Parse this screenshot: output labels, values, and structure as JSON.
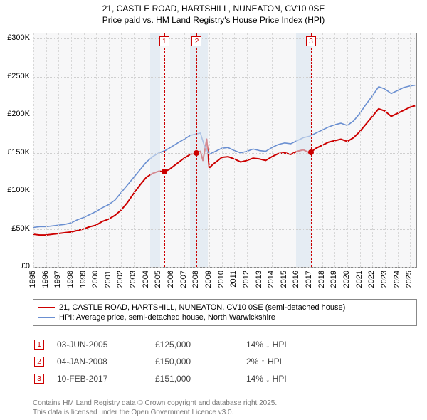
{
  "title_line1": "21, CASTLE ROAD, HARTSHILL, NUNEATON, CV10 0SE",
  "title_line2": "Price paid vs. HM Land Registry's House Price Index (HPI)",
  "chart": {
    "type": "line",
    "x_min": 1995,
    "x_max": 2025.5,
    "xticks": [
      1995,
      1996,
      1997,
      1998,
      1999,
      2000,
      2001,
      2002,
      2003,
      2004,
      2005,
      2006,
      2007,
      2008,
      2009,
      2010,
      2011,
      2012,
      2013,
      2014,
      2015,
      2016,
      2017,
      2018,
      2019,
      2020,
      2021,
      2022,
      2023,
      2024,
      2025
    ],
    "y_min": 0,
    "y_max": 307000,
    "yticks": [
      0,
      50000,
      100000,
      150000,
      200000,
      250000,
      300000
    ],
    "ytick_labels": [
      "£0",
      "£50K",
      "£100K",
      "£150K",
      "£200K",
      "£250K",
      "£300K"
    ],
    "background_color": "#f7f7f8",
    "grid_color": "#cfcfcf",
    "border_color": "#888888",
    "shaded_ranges": [
      {
        "from": 2004.3,
        "to": 2005.1,
        "color": "#d8e4f0"
      },
      {
        "from": 2007.5,
        "to": 2008.9,
        "color": "#d8e4f0"
      },
      {
        "from": 2015.9,
        "to": 2017.2,
        "color": "#d8e4f0"
      }
    ],
    "series": [
      {
        "name": "price_paid",
        "label": "21, CASTLE ROAD, HARTSHILL, NUNEATON, CV10 0SE (semi-detached house)",
        "color": "#cc0000",
        "line_width": 2,
        "points": [
          [
            1995.0,
            43000
          ],
          [
            1995.5,
            42000
          ],
          [
            1996.0,
            42000
          ],
          [
            1996.5,
            43000
          ],
          [
            1997.0,
            44000
          ],
          [
            1997.5,
            45000
          ],
          [
            1998.0,
            46000
          ],
          [
            1998.5,
            48000
          ],
          [
            1999.0,
            50000
          ],
          [
            1999.5,
            53000
          ],
          [
            2000.0,
            55000
          ],
          [
            2000.5,
            60000
          ],
          [
            2001.0,
            63000
          ],
          [
            2001.5,
            68000
          ],
          [
            2002.0,
            75000
          ],
          [
            2002.5,
            85000
          ],
          [
            2003.0,
            97000
          ],
          [
            2003.5,
            108000
          ],
          [
            2004.0,
            118000
          ],
          [
            2004.5,
            123000
          ],
          [
            2005.0,
            126000
          ],
          [
            2005.4,
            125000
          ],
          [
            2005.8,
            128000
          ],
          [
            2006.2,
            133000
          ],
          [
            2006.6,
            138000
          ],
          [
            2007.0,
            143000
          ],
          [
            2007.5,
            148000
          ],
          [
            2008.0,
            150000
          ],
          [
            2008.3,
            152000
          ],
          [
            2008.5,
            140000
          ],
          [
            2008.7,
            158000
          ],
          [
            2008.8,
            168000
          ],
          [
            2009.0,
            130000
          ],
          [
            2009.3,
            135000
          ],
          [
            2009.7,
            140000
          ],
          [
            2010.0,
            144000
          ],
          [
            2010.5,
            145000
          ],
          [
            2011.0,
            142000
          ],
          [
            2011.5,
            138000
          ],
          [
            2012.0,
            140000
          ],
          [
            2012.5,
            143000
          ],
          [
            2013.0,
            142000
          ],
          [
            2013.5,
            140000
          ],
          [
            2014.0,
            145000
          ],
          [
            2014.5,
            149000
          ],
          [
            2015.0,
            150000
          ],
          [
            2015.5,
            148000
          ],
          [
            2016.0,
            152000
          ],
          [
            2016.5,
            154000
          ],
          [
            2017.0,
            150000
          ],
          [
            2017.1,
            151000
          ],
          [
            2017.5,
            156000
          ],
          [
            2018.0,
            160000
          ],
          [
            2018.5,
            164000
          ],
          [
            2019.0,
            166000
          ],
          [
            2019.5,
            168000
          ],
          [
            2020.0,
            165000
          ],
          [
            2020.5,
            170000
          ],
          [
            2021.0,
            178000
          ],
          [
            2021.5,
            188000
          ],
          [
            2022.0,
            198000
          ],
          [
            2022.5,
            208000
          ],
          [
            2023.0,
            205000
          ],
          [
            2023.5,
            198000
          ],
          [
            2024.0,
            202000
          ],
          [
            2024.5,
            206000
          ],
          [
            2025.0,
            210000
          ],
          [
            2025.4,
            212000
          ]
        ]
      },
      {
        "name": "hpi",
        "label": "HPI: Average price, semi-detached house, North Warwickshire",
        "color": "#6a8fd1",
        "line_width": 1.6,
        "points": [
          [
            1995.0,
            52000
          ],
          [
            1995.5,
            53000
          ],
          [
            1996.0,
            53000
          ],
          [
            1996.5,
            54000
          ],
          [
            1997.0,
            55000
          ],
          [
            1997.5,
            56000
          ],
          [
            1998.0,
            58000
          ],
          [
            1998.5,
            62000
          ],
          [
            1999.0,
            65000
          ],
          [
            1999.5,
            69000
          ],
          [
            2000.0,
            73000
          ],
          [
            2000.5,
            78000
          ],
          [
            2001.0,
            82000
          ],
          [
            2001.5,
            88000
          ],
          [
            2002.0,
            98000
          ],
          [
            2002.5,
            108000
          ],
          [
            2003.0,
            118000
          ],
          [
            2003.5,
            128000
          ],
          [
            2004.0,
            138000
          ],
          [
            2004.5,
            145000
          ],
          [
            2005.0,
            150000
          ],
          [
            2005.5,
            153000
          ],
          [
            2006.0,
            158000
          ],
          [
            2006.5,
            163000
          ],
          [
            2007.0,
            168000
          ],
          [
            2007.5,
            173000
          ],
          [
            2008.0,
            175000
          ],
          [
            2008.3,
            176000
          ],
          [
            2008.6,
            160000
          ],
          [
            2009.0,
            148000
          ],
          [
            2009.5,
            152000
          ],
          [
            2010.0,
            156000
          ],
          [
            2010.5,
            157000
          ],
          [
            2011.0,
            153000
          ],
          [
            2011.5,
            150000
          ],
          [
            2012.0,
            152000
          ],
          [
            2012.5,
            155000
          ],
          [
            2013.0,
            153000
          ],
          [
            2013.5,
            152000
          ],
          [
            2014.0,
            157000
          ],
          [
            2014.5,
            161000
          ],
          [
            2015.0,
            163000
          ],
          [
            2015.5,
            162000
          ],
          [
            2016.0,
            166000
          ],
          [
            2016.5,
            170000
          ],
          [
            2017.0,
            172000
          ],
          [
            2017.5,
            176000
          ],
          [
            2018.0,
            180000
          ],
          [
            2018.5,
            184000
          ],
          [
            2019.0,
            187000
          ],
          [
            2019.5,
            189000
          ],
          [
            2020.0,
            186000
          ],
          [
            2020.5,
            192000
          ],
          [
            2021.0,
            202000
          ],
          [
            2021.5,
            214000
          ],
          [
            2022.0,
            225000
          ],
          [
            2022.5,
            237000
          ],
          [
            2023.0,
            234000
          ],
          [
            2023.5,
            228000
          ],
          [
            2024.0,
            232000
          ],
          [
            2024.5,
            236000
          ],
          [
            2025.0,
            238000
          ],
          [
            2025.4,
            239000
          ]
        ]
      }
    ],
    "markers": [
      {
        "n": "1",
        "x": 2005.42,
        "price": 125000
      },
      {
        "n": "2",
        "x": 2008.01,
        "price": 150000
      },
      {
        "n": "3",
        "x": 2017.11,
        "price": 151000
      }
    ]
  },
  "legend_items": [
    {
      "color": "#cc0000",
      "label": "21, CASTLE ROAD, HARTSHILL, NUNEATON, CV10 0SE (semi-detached house)"
    },
    {
      "color": "#6a8fd1",
      "label": "HPI: Average price, semi-detached house, North Warwickshire"
    }
  ],
  "events": [
    {
      "n": "1",
      "date": "03-JUN-2005",
      "price": "£125,000",
      "delta": "14% ↓ HPI"
    },
    {
      "n": "2",
      "date": "04-JAN-2008",
      "price": "£150,000",
      "delta": "2% ↑ HPI"
    },
    {
      "n": "3",
      "date": "10-FEB-2017",
      "price": "£151,000",
      "delta": "14% ↓ HPI"
    }
  ],
  "footer_line1": "Contains HM Land Registry data © Crown copyright and database right 2025.",
  "footer_line2": "This data is licensed under the Open Government Licence v3.0."
}
